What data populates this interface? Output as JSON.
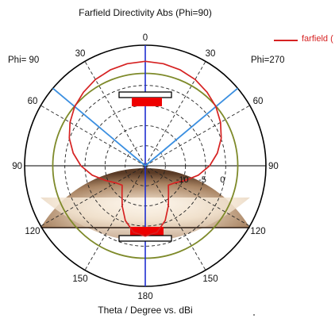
{
  "chart_data": {
    "type": "polar",
    "title": "Farfield Directivity Abs (Phi=90)",
    "xlabel": "Theta / Degree vs. dBi",
    "left_label": "Phi= 90",
    "right_label": "Phi=270",
    "series": [
      {
        "name": "farfield (",
        "color": "#d62222",
        "theta": [
          0,
          10,
          20,
          30,
          40,
          50,
          60,
          70,
          80,
          90,
          100,
          110,
          120,
          130,
          140,
          150,
          160,
          170,
          180
        ],
        "values": [
          6.0,
          5.8,
          5.4,
          4.8,
          3.9,
          2.9,
          1.6,
          0.1,
          -1.8,
          -4.0,
          -6.6,
          -9.4,
          -11.5,
          -12.5,
          -11.0,
          -8.5,
          -5.5,
          -3.2,
          -2.5
        ]
      }
    ],
    "radial_ticks": [
      "-10",
      "-5",
      "0"
    ],
    "radial_tick_values": [
      -10,
      -5,
      0
    ],
    "r_range": [
      -20,
      10
    ],
    "angle_ticks": [
      "0",
      "30",
      "60",
      "90",
      "120",
      "150",
      "180",
      "30",
      "60",
      "90",
      "120",
      "150"
    ],
    "angle_tick_theta": [
      0,
      30,
      60,
      90,
      120,
      150,
      180,
      -30,
      -60,
      -90,
      -120,
      -150
    ],
    "beam_lines_theta": [
      -50,
      50
    ],
    "reference_circle_value": 3,
    "colors": {
      "pattern": "#d62222",
      "beam_lines": "#3b8fe0",
      "reference_circle": "#7e8a2a",
      "main_axis": "#1f2fd0",
      "grid": "#222222",
      "model_fill": "#a47e5c"
    }
  }
}
